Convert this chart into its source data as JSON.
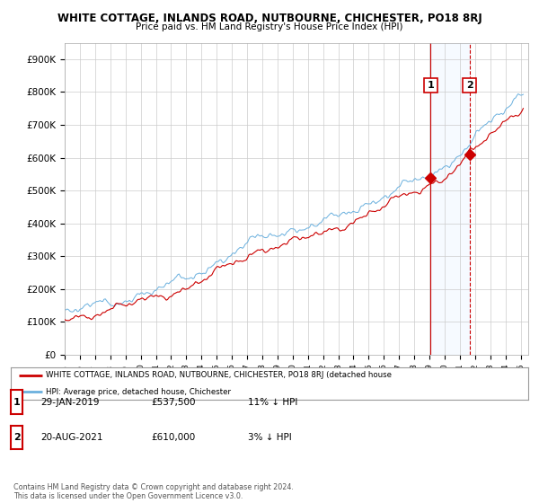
{
  "title": "WHITE COTTAGE, INLANDS ROAD, NUTBOURNE, CHICHESTER, PO18 8RJ",
  "subtitle": "Price paid vs. HM Land Registry's House Price Index (HPI)",
  "ylabel_ticks": [
    "£0",
    "£100K",
    "£200K",
    "£300K",
    "£400K",
    "£500K",
    "£600K",
    "£700K",
    "£800K",
    "£900K"
  ],
  "ytick_values": [
    0,
    100000,
    200000,
    300000,
    400000,
    500000,
    600000,
    700000,
    800000,
    900000
  ],
  "ylim": [
    0,
    950000
  ],
  "xlim_start": 1995.0,
  "xlim_end": 2025.5,
  "sale1_date": 2019.08,
  "sale1_price": 537500,
  "sale1_label": "1",
  "sale2_date": 2021.63,
  "sale2_price": 610000,
  "sale2_label": "2",
  "hpi_color": "#6ab0de",
  "price_color": "#cc0000",
  "vline1_color": "#cc0000",
  "vline2_color": "#cc0000",
  "shade_color": "#ddeeff",
  "annotation_box_color": "#cc0000",
  "legend_text1": "WHITE COTTAGE, INLANDS ROAD, NUTBOURNE, CHICHESTER, PO18 8RJ (detached house",
  "legend_text2": "HPI: Average price, detached house, Chichester",
  "table_row1": [
    "1",
    "29-JAN-2019",
    "£537,500",
    "11% ↓ HPI"
  ],
  "table_row2": [
    "2",
    "20-AUG-2021",
    "£610,000",
    "3% ↓ HPI"
  ],
  "footer": "Contains HM Land Registry data © Crown copyright and database right 2024.\nThis data is licensed under the Open Government Licence v3.0.",
  "background_color": "#ffffff"
}
